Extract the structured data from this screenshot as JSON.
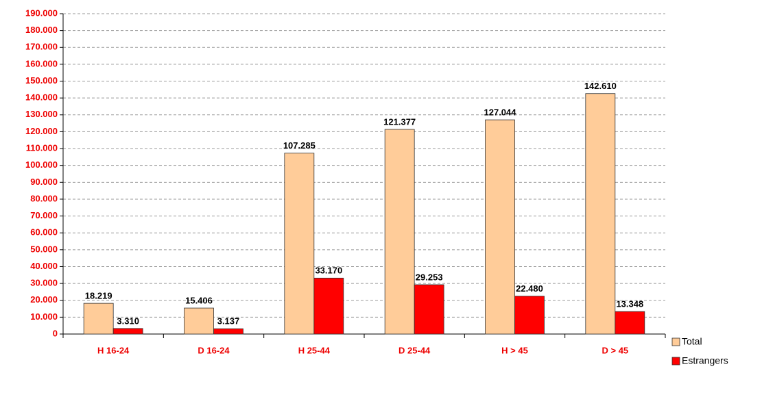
{
  "chart_data": {
    "type": "bar",
    "categories": [
      "H 16-24",
      "D 16-24",
      "H 25-44",
      "D 25-44",
      "H > 45",
      "D > 45"
    ],
    "series": [
      {
        "name": "Total",
        "color": "#FFCC99",
        "values": [
          18219,
          15406,
          107285,
          121377,
          127044,
          142610
        ],
        "value_labels": [
          "18.219",
          "15.406",
          "107.285",
          "121.377",
          "127.044",
          "142.610"
        ]
      },
      {
        "name": "Estrangers",
        "color": "#FF0000",
        "values": [
          3310,
          3137,
          33170,
          29253,
          22480,
          13348
        ],
        "value_labels": [
          "3.310",
          "3.137",
          "33.170",
          "29.253",
          "22.480",
          "13.348"
        ]
      }
    ],
    "ylim": [
      0,
      190000
    ],
    "yticks": [
      0,
      {
        "value": 10000,
        "label": "10.000"
      },
      {
        "value": 20000,
        "label": "20.000"
      },
      {
        "value": 30000,
        "label": "30.000"
      },
      {
        "value": 40000,
        "label": "40.000"
      },
      {
        "value": 50000,
        "label": "50.000"
      },
      {
        "value": 60000,
        "label": "60.000"
      },
      {
        "value": 70000,
        "label": "70.000"
      },
      {
        "value": 80000,
        "label": "80.000"
      },
      {
        "value": 90000,
        "label": "90.000"
      },
      {
        "value": 100000,
        "label": "100.000"
      },
      {
        "value": 110000,
        "label": "110.000"
      },
      {
        "value": 120000,
        "label": "120.000"
      },
      {
        "value": 130000,
        "label": "130.000"
      },
      {
        "value": 140000,
        "label": "140.000"
      },
      {
        "value": 150000,
        "label": "150.000"
      },
      {
        "value": 160000,
        "label": "160.000"
      },
      {
        "value": 170000,
        "label": "170.000"
      },
      {
        "value": 180000,
        "label": "180.000"
      },
      {
        "value": 190000,
        "label": "190.000"
      }
    ],
    "grid": true,
    "legend": "right"
  }
}
